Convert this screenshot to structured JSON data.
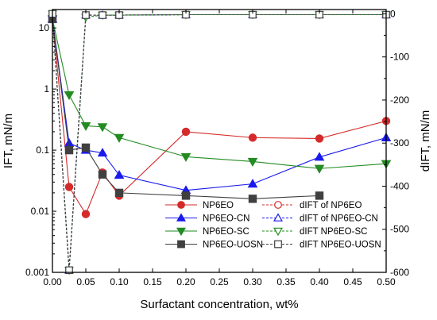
{
  "chart_data": {
    "type": "line",
    "xlabel": "Surfactant concentration, wt%",
    "ylabel": "IFT, mN/m",
    "y2label": "dIFT, mN/m",
    "xlim": [
      0,
      0.5
    ],
    "ylim": [
      0.001,
      20
    ],
    "y2lim": [
      -600,
      10
    ],
    "yscale": "log",
    "grid": false,
    "legend_position": "bottom-center",
    "x_ticks": [
      0.0,
      0.05,
      0.1,
      0.15,
      0.2,
      0.25,
      0.3,
      0.35,
      0.4,
      0.45,
      0.5
    ],
    "x_tick_labels": [
      "0.00",
      "0.05",
      "0.10",
      "0.15",
      "0.20",
      "0.25",
      "0.30",
      "0.35",
      "0.40",
      "0.45",
      "0.50"
    ],
    "y_ticks": [
      0.001,
      0.01,
      0.1,
      1,
      10
    ],
    "y_tick_labels": [
      "0.001",
      "0.01",
      "0.1",
      "1",
      "10"
    ],
    "y2_ticks": [
      0,
      -100,
      -200,
      -300,
      -400,
      -500,
      -600
    ],
    "y2_tick_labels": [
      "0",
      "-100",
      "-200",
      "-300",
      "-400",
      "-500",
      "-600"
    ],
    "series": [
      {
        "name": "NP6EO",
        "axis": "left",
        "color": "#d62a2a",
        "marker": "circle",
        "filled": true,
        "dashed": false,
        "x": [
          0,
          0.025,
          0.05,
          0.075,
          0.1,
          0.2,
          0.3,
          0.4,
          0.5
        ],
        "y": [
          14,
          0.025,
          0.009,
          0.043,
          0.018,
          0.2,
          0.16,
          0.155,
          0.3
        ]
      },
      {
        "name": "NP6EO-CN",
        "axis": "left",
        "color": "#1a1aee",
        "marker": "triangle-up",
        "filled": true,
        "dashed": false,
        "x": [
          0,
          0.025,
          0.05,
          0.075,
          0.1,
          0.2,
          0.3,
          0.4,
          0.5
        ],
        "y": [
          14,
          0.13,
          0.1,
          0.09,
          0.039,
          0.022,
          0.028,
          0.077,
          0.16
        ]
      },
      {
        "name": "NP6EO-SC",
        "axis": "left",
        "color": "#228b22",
        "marker": "triangle-down",
        "filled": true,
        "dashed": false,
        "x": [
          0,
          0.025,
          0.05,
          0.075,
          0.1,
          0.2,
          0.3,
          0.4,
          0.5
        ],
        "y": [
          14,
          0.8,
          0.25,
          0.24,
          0.16,
          0.078,
          0.065,
          0.05,
          0.06
        ]
      },
      {
        "name": "NP6EO-UOSN",
        "axis": "left",
        "color": "#404040",
        "marker": "square",
        "filled": true,
        "dashed": false,
        "x": [
          0,
          0.025,
          0.05,
          0.075,
          0.1,
          0.2,
          0.3,
          0.4
        ],
        "y": [
          14,
          0.1,
          0.11,
          0.04,
          0.02,
          0.018,
          0.016,
          0.018
        ]
      },
      {
        "name": "dIFT of NP6EO",
        "axis": "right",
        "color": "#d62a2a",
        "marker": "circle",
        "filled": false,
        "dashed": true,
        "x": [
          0,
          0.025,
          0.05,
          0.075,
          0.1,
          0.2,
          0.3,
          0.4,
          0.5
        ],
        "y": [
          0,
          -595,
          -3,
          -3,
          -3,
          -2,
          -2,
          -2,
          -2
        ]
      },
      {
        "name": "dIFT of NP6EO-CN",
        "axis": "right",
        "color": "#1a1aee",
        "marker": "triangle-up",
        "filled": false,
        "dashed": true,
        "x": [
          0,
          0.025,
          0.05,
          0.075,
          0.1,
          0.2,
          0.3,
          0.4,
          0.5
        ],
        "y": [
          0,
          -595,
          -3,
          -3,
          -3,
          -2,
          -2,
          -2,
          -2
        ]
      },
      {
        "name": "dIFT NP6EO-SC",
        "axis": "right",
        "color": "#228b22",
        "marker": "triangle-down",
        "filled": false,
        "dashed": true,
        "x": [
          0,
          0.025,
          0.05,
          0.075,
          0.1,
          0.2,
          0.3,
          0.4,
          0.5
        ],
        "y": [
          0,
          -595,
          -8,
          -3,
          -3,
          -2,
          -2,
          -2,
          -2
        ]
      },
      {
        "name": "dIFT NP6EO-UOSN",
        "axis": "right",
        "color": "#404040",
        "marker": "square",
        "filled": false,
        "dashed": true,
        "x": [
          0,
          0.025,
          0.05,
          0.075,
          0.1,
          0.2,
          0.3,
          0.4,
          0.5
        ],
        "y": [
          0,
          -595,
          -3,
          -3,
          -3,
          -2,
          -2,
          -2,
          -2
        ]
      }
    ]
  }
}
